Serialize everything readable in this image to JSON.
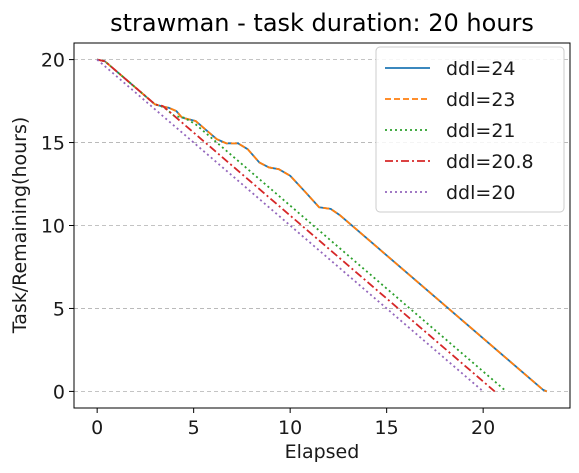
{
  "chart_data": {
    "type": "line",
    "title": "strawman - task duration: 20 hours",
    "xlabel": "Elapsed",
    "ylabel": "Task/Remaining(hours)",
    "xlim": [
      -1.2,
      24.5
    ],
    "ylim": [
      -1.0,
      21.0
    ],
    "xticks": [
      0,
      5,
      10,
      15,
      20
    ],
    "yticks": [
      0,
      5,
      10,
      15,
      20
    ],
    "grid": {
      "y": true,
      "x": false,
      "style": "dashed"
    },
    "legend_position": "top-right",
    "series": [
      {
        "name": "ddl=24",
        "color": "#1f77b4",
        "dash": "solid",
        "points": [
          [
            0,
            20
          ],
          [
            0.4,
            19.9
          ],
          [
            3.0,
            17.3
          ],
          [
            3.3,
            17.2
          ],
          [
            3.7,
            17.1
          ],
          [
            4.1,
            16.9
          ],
          [
            4.4,
            16.5
          ],
          [
            5.1,
            16.3
          ],
          [
            5.6,
            15.8
          ],
          [
            6.2,
            15.2
          ],
          [
            6.7,
            14.95
          ],
          [
            7.3,
            14.95
          ],
          [
            7.8,
            14.6
          ],
          [
            8.4,
            13.8
          ],
          [
            8.9,
            13.5
          ],
          [
            9.4,
            13.4
          ],
          [
            10.0,
            13.0
          ],
          [
            10.8,
            12.0
          ],
          [
            11.5,
            11.1
          ],
          [
            12.1,
            11.0
          ],
          [
            12.6,
            10.6
          ],
          [
            23.1,
            0.1
          ],
          [
            23.3,
            0
          ]
        ]
      },
      {
        "name": "ddl=23",
        "color": "#ff7f0e",
        "dash": "dashed",
        "points": [
          [
            0,
            20
          ],
          [
            0.4,
            19.9
          ],
          [
            3.0,
            17.3
          ],
          [
            3.3,
            17.2
          ],
          [
            3.7,
            17.1
          ],
          [
            4.1,
            16.9
          ],
          [
            4.4,
            16.5
          ],
          [
            5.1,
            16.3
          ],
          [
            5.6,
            15.8
          ],
          [
            6.2,
            15.2
          ],
          [
            6.7,
            14.95
          ],
          [
            7.3,
            14.95
          ],
          [
            7.8,
            14.6
          ],
          [
            8.4,
            13.8
          ],
          [
            8.9,
            13.5
          ],
          [
            9.4,
            13.4
          ],
          [
            10.0,
            13.0
          ],
          [
            10.8,
            12.0
          ],
          [
            11.5,
            11.1
          ],
          [
            12.1,
            11.0
          ],
          [
            12.6,
            10.6
          ],
          [
            23.1,
            0.1
          ],
          [
            23.3,
            0
          ]
        ]
      },
      {
        "name": "ddl=21",
        "color": "#2ca02c",
        "dash": "dotted",
        "points": [
          [
            0,
            20
          ],
          [
            0.4,
            19.9
          ],
          [
            3.0,
            17.3
          ],
          [
            3.3,
            17.2
          ],
          [
            3.6,
            17.0
          ],
          [
            4.0,
            16.6
          ],
          [
            4.5,
            16.5
          ],
          [
            5.1,
            16.1
          ],
          [
            21.2,
            0
          ]
        ]
      },
      {
        "name": "ddl=20.8",
        "color": "#d62728",
        "dash": "dashdot",
        "points": [
          [
            0,
            20
          ],
          [
            0.4,
            19.9
          ],
          [
            3.0,
            17.3
          ],
          [
            3.4,
            17.2
          ],
          [
            3.8,
            16.8
          ],
          [
            4.2,
            16.4
          ],
          [
            20.6,
            0
          ]
        ]
      },
      {
        "name": "ddl=20",
        "color": "#9467bd",
        "dash": "dotted",
        "points": [
          [
            0,
            20
          ],
          [
            20,
            0
          ]
        ]
      }
    ]
  }
}
